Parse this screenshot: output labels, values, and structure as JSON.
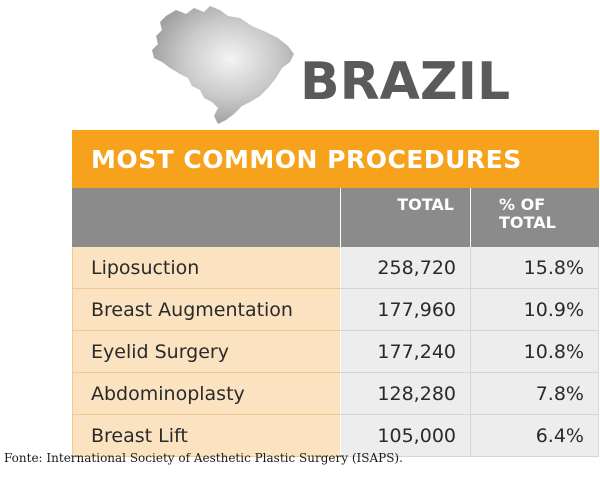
{
  "country": "BRAZIL",
  "source": "Fonte: International Society of Aesthetic Plastic Surgery (ISAPS).",
  "colors": {
    "banner": "#f6a21c",
    "header": "#8b8b8b",
    "name_cell": "#fbe3c2",
    "value_cell": "#ededed",
    "title_text": "#5a5a5a",
    "map": "#b9b9b9"
  },
  "icons": {
    "map": "brazil-map-silhouette"
  },
  "chart_data": {
    "type": "table",
    "title": "MOST COMMON PROCEDURES",
    "columns": [
      "",
      "TOTAL",
      "% OF TOTAL"
    ],
    "column_lines": {
      "total": [
        "TOTAL"
      ],
      "pct": [
        "% OF",
        "TOTAL"
      ]
    },
    "rows": [
      {
        "procedure": "Liposuction",
        "total": "258,720",
        "pct": "15.8%"
      },
      {
        "procedure": "Breast Augmentation",
        "total": "177,960",
        "pct": "10.9%"
      },
      {
        "procedure": "Eyelid Surgery",
        "total": "177,240",
        "pct": "10.8%"
      },
      {
        "procedure": "Abdominoplasty",
        "total": "128,280",
        "pct": "7.8%"
      },
      {
        "procedure": "Breast Lift",
        "total": "105,000",
        "pct": "6.4%"
      }
    ]
  }
}
